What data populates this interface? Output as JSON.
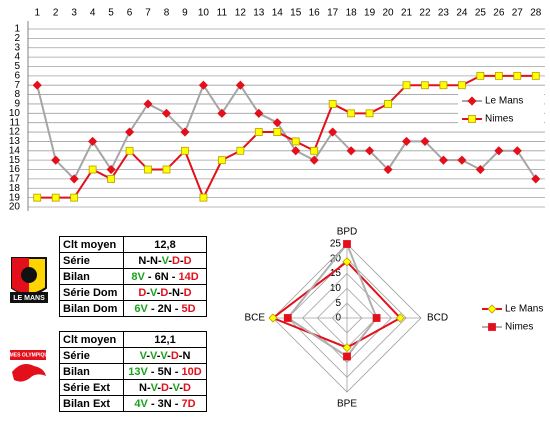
{
  "chart_data": [
    {
      "type": "line",
      "categories": [
        1,
        2,
        3,
        4,
        5,
        6,
        7,
        8,
        9,
        10,
        11,
        12,
        13,
        14,
        15,
        16,
        17,
        18,
        19,
        20,
        21,
        22,
        23,
        24,
        25,
        26,
        27,
        28
      ],
      "ylim": [
        1,
        20
      ],
      "yticks": [
        1,
        2,
        3,
        4,
        5,
        6,
        7,
        8,
        9,
        10,
        11,
        12,
        13,
        14,
        15,
        16,
        17,
        18,
        19,
        20
      ],
      "y_reversed": true,
      "grid": true,
      "legend": "right",
      "series": [
        {
          "name": "Le Mans",
          "color": "#a6a6a6",
          "marker": "diamond",
          "marker_color": "#e3101c",
          "values": [
            7,
            15,
            17,
            13,
            16,
            12,
            9,
            10,
            12,
            7,
            10,
            7,
            10,
            11,
            14,
            15,
            12,
            14,
            14,
            16,
            13,
            13,
            15,
            15,
            16,
            14,
            14,
            17
          ]
        },
        {
          "name": "Nimes",
          "color": "#e3101c",
          "marker": "square",
          "marker_color": "#ffff00",
          "values": [
            19,
            19,
            19,
            16,
            17,
            14,
            16,
            16,
            14,
            19,
            15,
            14,
            12,
            12,
            13,
            14,
            9,
            10,
            10,
            9,
            7,
            7,
            7,
            7,
            6,
            6,
            6,
            6
          ]
        }
      ]
    },
    {
      "type": "radar",
      "categories": [
        "BPD",
        "BCD",
        "BPE",
        "BCE"
      ],
      "rlim": [
        0,
        25
      ],
      "rticks": [
        0,
        5,
        10,
        15,
        20,
        25
      ],
      "grid": true,
      "legend": "right",
      "series": [
        {
          "name": "Le Mans",
          "color": "#e3101c",
          "marker": "diamond",
          "marker_color": "#ffff00",
          "values": [
            19,
            18,
            10,
            25
          ]
        },
        {
          "name": "Nimes",
          "color": "#b0b0b0",
          "marker": "square",
          "marker_color": "#e3101c",
          "values": [
            25,
            10,
            13,
            20
          ]
        }
      ]
    }
  ],
  "tables": [
    {
      "logo": "LE MANS",
      "rows": [
        [
          "Clt moyen",
          "12,8"
        ],
        [
          "Série",
          "N-N-V-D-D"
        ],
        [
          "Bilan",
          "8V - 6N - 14D"
        ],
        [
          "Série Dom",
          "D-V-D-N-D"
        ],
        [
          "Bilan Dom",
          "6V - 2N - 5D"
        ]
      ]
    },
    {
      "logo": "NIMES OLYMPIQUE",
      "rows": [
        [
          "Clt moyen",
          "12,1"
        ],
        [
          "Série",
          "V-V-V-D-N"
        ],
        [
          "Bilan",
          "13V - 5N - 10D"
        ],
        [
          "Série Ext",
          "N-V-D-V-D"
        ],
        [
          "Bilan Ext",
          "4V - 3N - 7D"
        ]
      ]
    }
  ]
}
